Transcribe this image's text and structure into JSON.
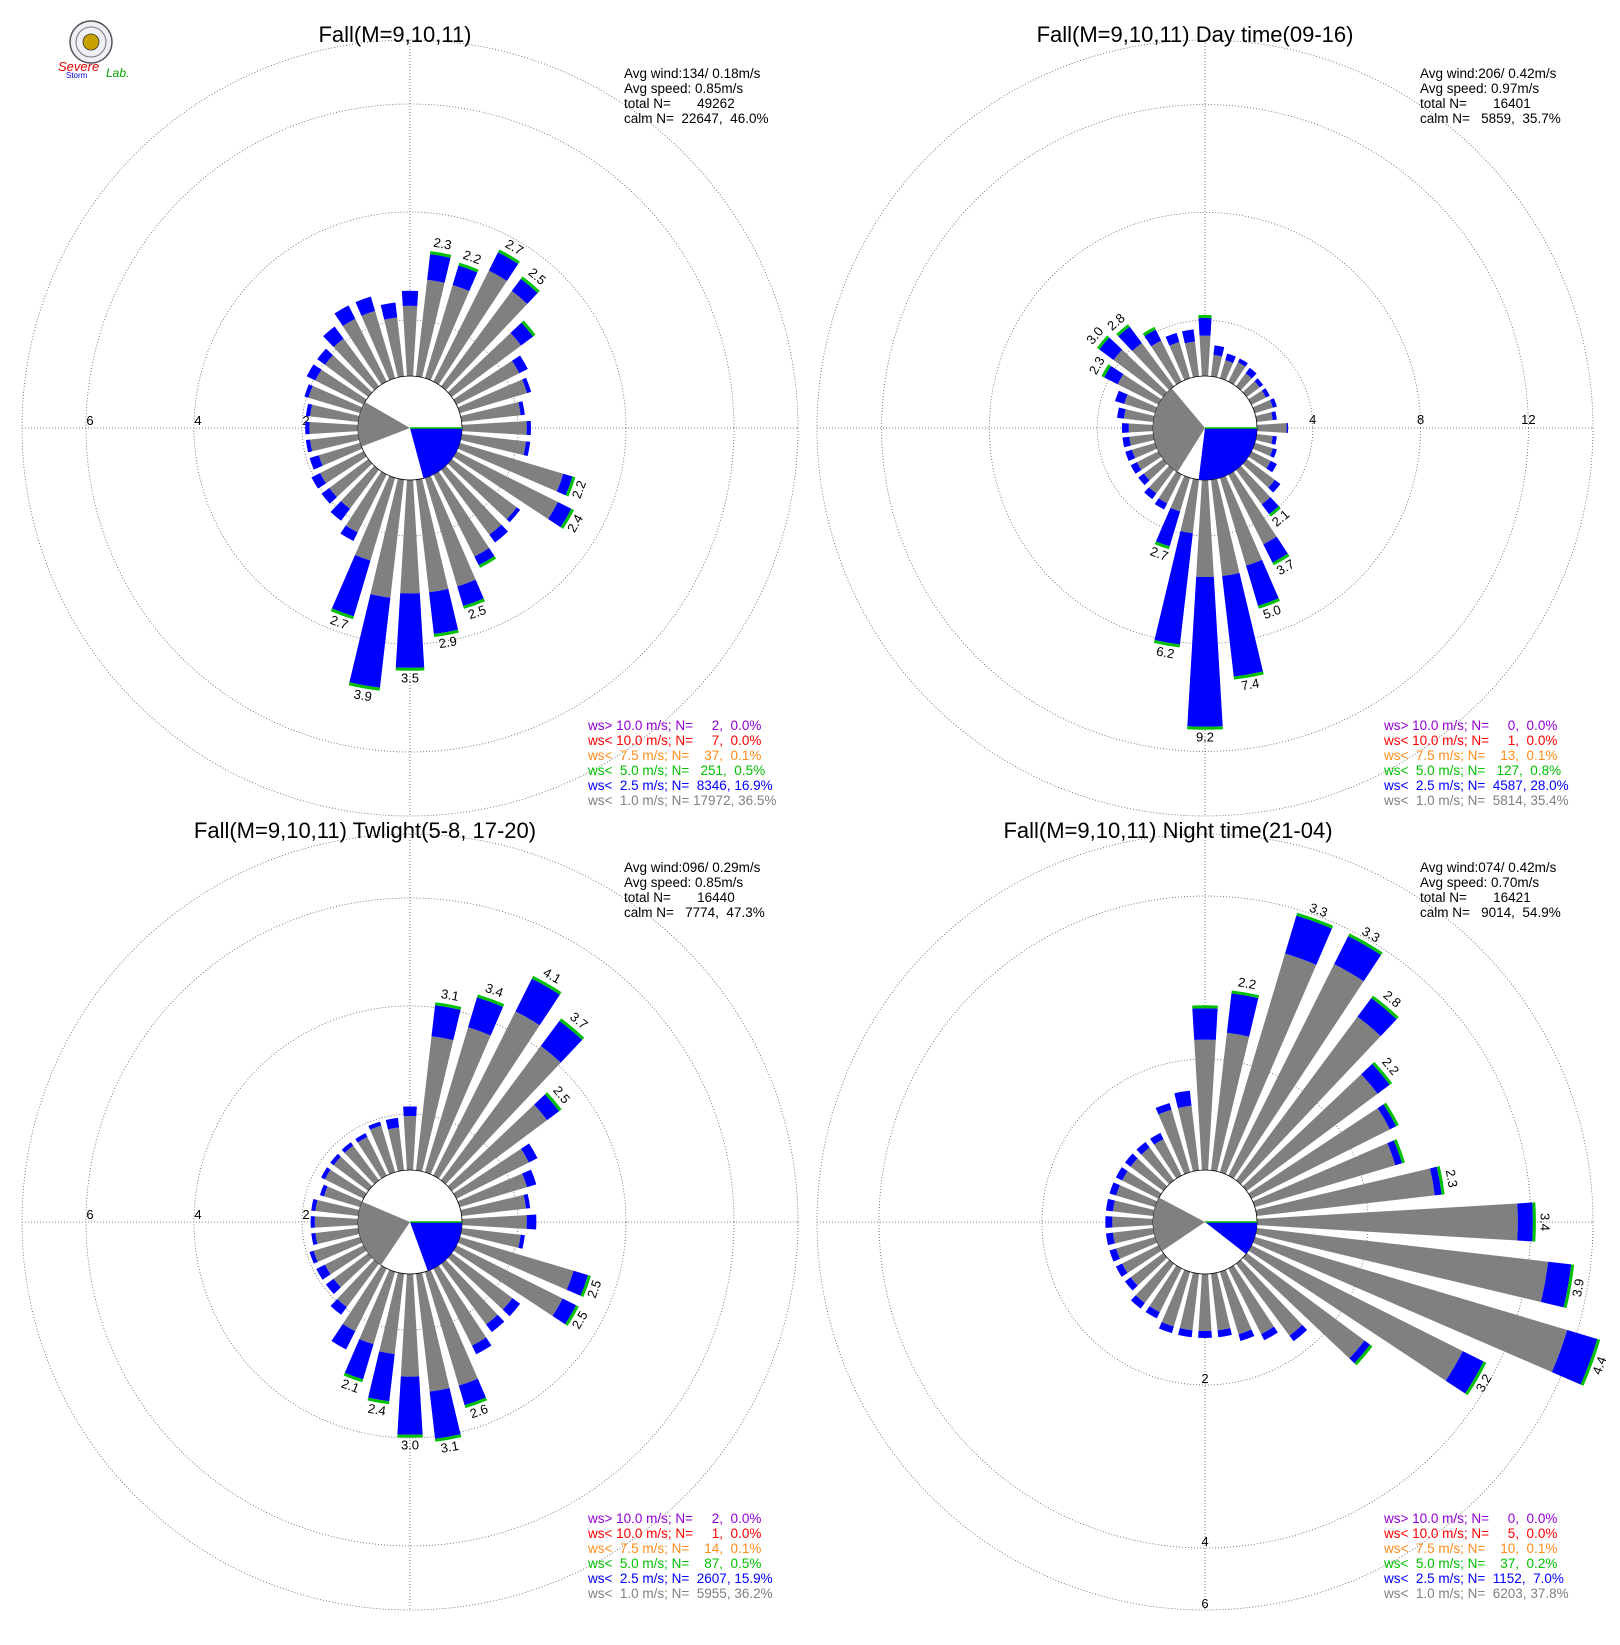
{
  "logo": {
    "text_severe": "Severe",
    "text_storm": "Storm",
    "text_lab": "Lab."
  },
  "colors": {
    "calm_fill": "#808080",
    "bin_colors": [
      "#9400d3",
      "#ff0000",
      "#ff8c1a",
      "#00c000",
      "#0000ff",
      "#808080"
    ],
    "ring_color": "#606060"
  },
  "chart_data": [
    {
      "type": "polar-bar",
      "title": "Fall(M=9,10,11)",
      "stats": [
        "Avg wind:134/ 0.18m/s",
        "Avg speed: 0.85m/s",
        "total N=       49262",
        "calm N=  22647,  46.0%"
      ],
      "legend": [
        "ws> 10.0 m/s; N=     2,  0.0%",
        "ws< 10.0 m/s; N=     7,  0.0%",
        "ws<  7.5 m/s; N=    37,  0.1%",
        "ws<  5.0 m/s; N=   251,  0.5%",
        "ws<  2.5 m/s; N=  8346, 16.9%",
        "ws<  1.0 m/s; N= 17972, 36.5%"
      ],
      "rings": [
        2,
        4,
        6
      ],
      "ring_labels": [
        "2",
        "4",
        "6"
      ],
      "calm_wedge_deg": [
        249,
        300
      ],
      "calm_blue_deg": [
        90,
        165
      ],
      "directions": [
        0,
        10,
        20,
        30,
        40,
        50,
        60,
        70,
        80,
        90,
        100,
        110,
        120,
        130,
        140,
        150,
        160,
        170,
        180,
        190,
        200,
        210,
        220,
        230,
        240,
        250,
        260,
        270,
        280,
        290,
        300,
        310,
        320,
        330,
        340,
        350
      ],
      "totals": [
        1.6,
        2.3,
        2.2,
        2.7,
        2.5,
        1.9,
        1.5,
        1.4,
        1.2,
        1.3,
        1.3,
        2.2,
        2.4,
        1.6,
        1.7,
        1.9,
        2.5,
        2.9,
        3.5,
        3.9,
        2.7,
        1.4,
        1.2,
        1.1,
        1.1,
        1.0,
        1.0,
        1.0,
        1.0,
        1.1,
        1.2,
        1.2,
        1.4,
        1.6,
        1.6,
        1.4
      ],
      "blue": [
        0.3,
        0.5,
        0.4,
        0.4,
        0.3,
        0.3,
        0.2,
        0.1,
        0.1,
        0.1,
        0.1,
        0.2,
        0.3,
        0.1,
        0.2,
        0.2,
        0.4,
        0.8,
        1.4,
        1.7,
        1.1,
        0.2,
        0.3,
        0.2,
        0.2,
        0.2,
        0.1,
        0.1,
        0.1,
        0.1,
        0.2,
        0.2,
        0.3,
        0.3,
        0.3,
        0.3
      ],
      "value_labels": [
        {
          "dir": 10,
          "text": "2.3"
        },
        {
          "dir": 20,
          "text": "2.2"
        },
        {
          "dir": 30,
          "text": "2.7"
        },
        {
          "dir": 40,
          "text": "2.5"
        },
        {
          "dir": 110,
          "text": "2.2"
        },
        {
          "dir": 120,
          "text": "2.4"
        },
        {
          "dir": 160,
          "text": "2.5"
        },
        {
          "dir": 170,
          "text": "2.9"
        },
        {
          "dir": 180,
          "text": "3.5"
        },
        {
          "dir": 190,
          "text": "3.9"
        },
        {
          "dir": 200,
          "text": "2.7"
        }
      ]
    },
    {
      "type": "polar-bar",
      "title": "Fall(M=9,10,11) Day time(09-16)",
      "stats": [
        "Avg wind:206/ 0.42m/s",
        "Avg speed: 0.97m/s",
        "total N=       16401",
        "calm N=   5859,  35.7%"
      ],
      "legend": [
        "ws> 10.0 m/s; N=     0,  0.0%",
        "ws< 10.0 m/s; N=     1,  0.0%",
        "ws<  7.5 m/s; N=    13,  0.1%",
        "ws<  5.0 m/s; N=   127,  0.8%",
        "ws<  2.5 m/s; N=  4587, 28.0%",
        "ws<  1.0 m/s; N=  5814, 35.4%"
      ],
      "rings": [
        4,
        8,
        12
      ],
      "ring_labels": [
        "4",
        "8",
        "12"
      ],
      "calm_wedge_deg": [
        212,
        320
      ],
      "calm_blue_deg": [
        90,
        187
      ],
      "directions": [
        0,
        10,
        20,
        30,
        40,
        50,
        60,
        70,
        80,
        90,
        100,
        110,
        120,
        130,
        140,
        150,
        160,
        170,
        180,
        190,
        200,
        210,
        220,
        230,
        240,
        250,
        260,
        270,
        280,
        290,
        300,
        310,
        320,
        330,
        340,
        350
      ],
      "totals": [
        2.2,
        1.2,
        1.0,
        1.0,
        0.9,
        0.8,
        0.8,
        0.9,
        0.8,
        1.2,
        0.8,
        0.9,
        1.1,
        1.6,
        2.1,
        3.7,
        5.0,
        7.4,
        9.2,
        6.2,
        2.7,
        1.5,
        1.4,
        1.2,
        1.2,
        1.2,
        1.2,
        1.2,
        1.4,
        1.6,
        2.3,
        3.0,
        2.8,
        2.2,
        1.8,
        1.8
      ],
      "blue": [
        0.7,
        0.4,
        0.3,
        0.2,
        0.3,
        0.2,
        0.2,
        0.2,
        0.2,
        0.1,
        0.2,
        0.2,
        0.3,
        0.3,
        0.5,
        0.8,
        1.6,
        3.8,
        5.6,
        4.2,
        1.4,
        0.3,
        0.3,
        0.3,
        0.3,
        0.3,
        0.3,
        0.3,
        0.3,
        0.4,
        0.6,
        0.7,
        0.8,
        0.5,
        0.4,
        0.5
      ],
      "value_labels": [
        {
          "dir": 140,
          "text": "2.1"
        },
        {
          "dir": 150,
          "text": "3.7"
        },
        {
          "dir": 160,
          "text": "5.0"
        },
        {
          "dir": 170,
          "text": "7.4"
        },
        {
          "dir": 180,
          "text": "9.2"
        },
        {
          "dir": 190,
          "text": "6.2"
        },
        {
          "dir": 200,
          "text": "2.7"
        },
        {
          "dir": 300,
          "text": "2.3"
        },
        {
          "dir": 310,
          "text": "3.0"
        },
        {
          "dir": 320,
          "text": "2.8"
        }
      ]
    },
    {
      "type": "polar-bar",
      "title": "Fall(M=9,10,11) Twlight(5-8, 17-20)",
      "stats": [
        "Avg wind:096/ 0.29m/s",
        "Avg speed: 0.85m/s",
        "total N=       16440",
        "calm N=   7774,  47.3%"
      ],
      "legend": [
        "ws> 10.0 m/s; N=     2,  0.0%",
        "ws< 10.0 m/s; N=     1,  0.0%",
        "ws<  7.5 m/s; N=    14,  0.1%",
        "ws<  5.0 m/s; N=    87,  0.5%",
        "ws<  2.5 m/s; N=  2607, 15.9%",
        "ws<  1.0 m/s; N=  5955, 36.2%"
      ],
      "rings": [
        2,
        4,
        6
      ],
      "ring_labels": [
        "2",
        "4",
        "6"
      ],
      "calm_wedge_deg": [
        214,
        293
      ],
      "calm_blue_deg": [
        90,
        160
      ],
      "directions": [
        0,
        10,
        20,
        30,
        40,
        50,
        60,
        70,
        80,
        90,
        100,
        110,
        120,
        130,
        140,
        150,
        160,
        170,
        180,
        190,
        200,
        210,
        220,
        230,
        240,
        250,
        260,
        270,
        280,
        290,
        300,
        310,
        320,
        330,
        340,
        350
      ],
      "totals": [
        1.2,
        3.1,
        3.4,
        4.1,
        3.7,
        2.5,
        1.7,
        1.5,
        1.3,
        1.4,
        1.2,
        2.5,
        2.5,
        1.6,
        1.6,
        1.8,
        2.6,
        3.1,
        3.0,
        2.4,
        2.1,
        1.7,
        1.2,
        1.0,
        1.0,
        1.0,
        0.9,
        0.9,
        0.9,
        0.8,
        0.9,
        0.9,
        0.9,
        0.9,
        1.0,
        1.0
      ],
      "blue": [
        0.2,
        0.6,
        0.6,
        0.7,
        0.6,
        0.3,
        0.2,
        0.2,
        0.1,
        0.2,
        0.1,
        0.3,
        0.3,
        0.2,
        0.2,
        0.2,
        0.4,
        0.9,
        1.1,
        0.9,
        0.7,
        0.4,
        0.2,
        0.2,
        0.2,
        0.1,
        0.1,
        0.1,
        0.1,
        0.1,
        0.1,
        0.1,
        0.1,
        0.1,
        0.1,
        0.2
      ],
      "value_labels": [
        {
          "dir": 10,
          "text": "3.1"
        },
        {
          "dir": 20,
          "text": "3.4"
        },
        {
          "dir": 30,
          "text": "4.1"
        },
        {
          "dir": 40,
          "text": "3.7"
        },
        {
          "dir": 50,
          "text": "2.5"
        },
        {
          "dir": 110,
          "text": "2.5"
        },
        {
          "dir": 120,
          "text": "2.5"
        },
        {
          "dir": 160,
          "text": "2.6"
        },
        {
          "dir": 170,
          "text": "3.1"
        },
        {
          "dir": 180,
          "text": "3.0"
        },
        {
          "dir": 190,
          "text": "2.4"
        },
        {
          "dir": 200,
          "text": "2.1"
        }
      ]
    },
    {
      "type": "polar-bar",
      "title": "Fall(M=9,10,11) Night time(21-04)",
      "stats": [
        "Avg wind:074/ 0.42m/s",
        "Avg speed: 0.70m/s",
        "total N=       16421",
        "calm N=   9014,  54.9%"
      ],
      "legend": [
        "ws> 10.0 m/s; N=     0,  0.0%",
        "ws< 10.0 m/s; N=     5,  0.0%",
        "ws<  7.5 m/s; N=    10,  0.1%",
        "ws<  5.0 m/s; N=    37,  0.2%",
        "ws<  2.5 m/s; N=  1152,  7.0%",
        "ws<  1.0 m/s; N=  6203, 37.8%"
      ],
      "rings": [
        2,
        4,
        6
      ],
      "ring_labels": [
        "2",
        "4",
        "6"
      ],
      "calm_wedge_deg": [
        236,
        298
      ],
      "calm_blue_deg": [
        90,
        128
      ],
      "directions": [
        0,
        10,
        20,
        30,
        40,
        50,
        60,
        70,
        80,
        90,
        100,
        110,
        120,
        130,
        140,
        150,
        160,
        170,
        180,
        190,
        200,
        210,
        220,
        230,
        240,
        250,
        260,
        270,
        280,
        290,
        300,
        310,
        320,
        330,
        340,
        350
      ],
      "totals": [
        2.0,
        2.2,
        3.3,
        3.3,
        2.8,
        2.2,
        2.0,
        1.9,
        2.3,
        3.4,
        3.9,
        4.4,
        3.2,
        1.9,
        1.2,
        1.0,
        0.9,
        0.8,
        0.8,
        0.8,
        0.8,
        0.7,
        0.7,
        0.6,
        0.6,
        0.6,
        0.6,
        0.6,
        0.6,
        0.6,
        0.6,
        0.6,
        0.6,
        0.6,
        0.9,
        1.0
      ],
      "blue": [
        0.4,
        0.5,
        0.5,
        0.4,
        0.3,
        0.2,
        0.1,
        0.1,
        0.1,
        0.2,
        0.3,
        0.4,
        0.3,
        0.1,
        0.1,
        0.1,
        0.1,
        0.1,
        0.1,
        0.1,
        0.1,
        0.1,
        0.1,
        0.1,
        0.1,
        0.1,
        0.1,
        0.1,
        0.1,
        0.1,
        0.1,
        0.1,
        0.1,
        0.1,
        0.1,
        0.2
      ],
      "value_labels": [
        {
          "dir": 10,
          "text": "2.2"
        },
        {
          "dir": 20,
          "text": "3.3"
        },
        {
          "dir": 30,
          "text": "3.3"
        },
        {
          "dir": 40,
          "text": "2.8"
        },
        {
          "dir": 50,
          "text": "2.2"
        },
        {
          "dir": 80,
          "text": "2.3"
        },
        {
          "dir": 90,
          "text": "3.4"
        },
        {
          "dir": 100,
          "text": "3.9"
        },
        {
          "dir": 110,
          "text": "4.4"
        },
        {
          "dir": 120,
          "text": "3.2"
        }
      ]
    }
  ]
}
